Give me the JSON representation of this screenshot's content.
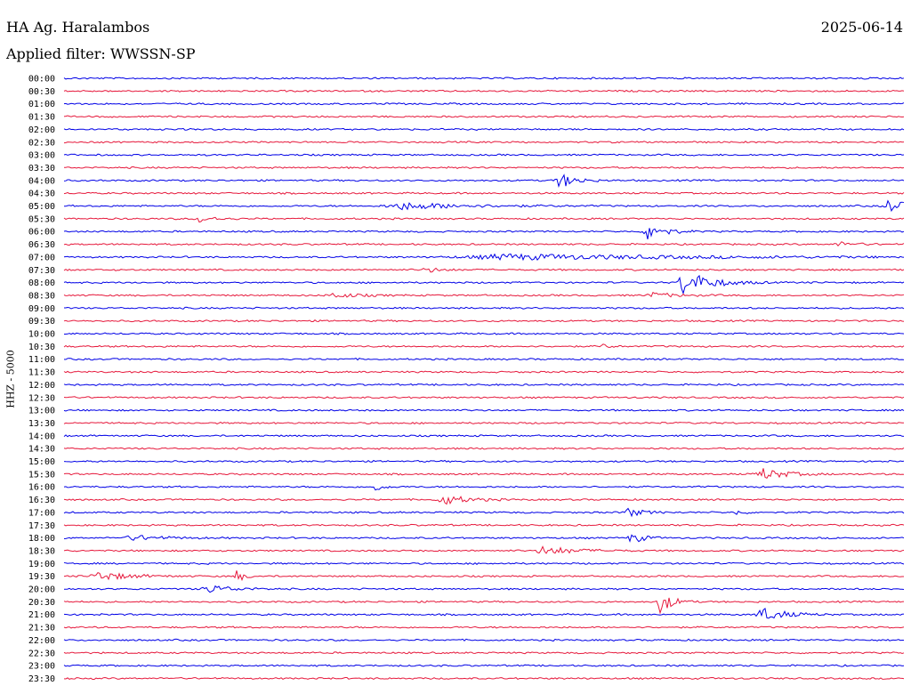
{
  "header": {
    "station": "HA Ag. Haralambos",
    "date": "2025-06-14",
    "filter": "Applied filter: WWSSN-SP"
  },
  "chart_data": {
    "type": "line",
    "title": "HA Ag. Haralambos",
    "ylabel": "HHZ - 5000",
    "categories": [
      "00:00",
      "00:30",
      "01:00",
      "01:30",
      "02:00",
      "02:30",
      "03:00",
      "03:30",
      "04:00",
      "04:30",
      "05:00",
      "05:30",
      "06:00",
      "06:30",
      "07:00",
      "07:30",
      "08:00",
      "08:30",
      "09:00",
      "09:30",
      "10:00",
      "10:30",
      "11:00",
      "11:30",
      "12:00",
      "12:30",
      "13:00",
      "13:30",
      "14:00",
      "14:30",
      "15:00",
      "15:30",
      "16:00",
      "16:30",
      "17:00",
      "17:30",
      "18:00",
      "18:30",
      "19:00",
      "19:30",
      "20:00",
      "20:30",
      "21:00",
      "21:30",
      "22:00",
      "22:30",
      "23:00",
      "23:30"
    ],
    "colors": {
      "even": "#0000e6",
      "odd": "#e6193c"
    },
    "events": [
      {
        "row": 8,
        "t": 0.59,
        "amp": 9,
        "dur": 0.02
      },
      {
        "row": 10,
        "t": 0.4,
        "amp": 4,
        "dur": 0.08
      },
      {
        "row": 10,
        "t": 0.98,
        "amp": 8,
        "dur": 0.025
      },
      {
        "row": 11,
        "t": 0.16,
        "amp": 4,
        "dur": 0.02
      },
      {
        "row": 12,
        "t": 0.695,
        "amp": 11,
        "dur": 0.02
      },
      {
        "row": 13,
        "t": 0.92,
        "amp": 3,
        "dur": 0.02
      },
      {
        "row": 14,
        "t": 0.52,
        "amp": 3,
        "dur": 0.25
      },
      {
        "row": 15,
        "t": 0.43,
        "amp": 3,
        "dur": 0.02
      },
      {
        "row": 16,
        "t": 0.737,
        "amp": 14,
        "dur": 0.035
      },
      {
        "row": 17,
        "t": 0.7,
        "amp": 3,
        "dur": 0.03
      },
      {
        "row": 17,
        "t": 0.32,
        "amp": 3,
        "dur": 0.03
      },
      {
        "row": 21,
        "t": 0.64,
        "amp": 3,
        "dur": 0.01
      },
      {
        "row": 31,
        "t": 0.83,
        "amp": 7,
        "dur": 0.03
      },
      {
        "row": 32,
        "t": 0.37,
        "amp": 5,
        "dur": 0.01
      },
      {
        "row": 33,
        "t": 0.45,
        "amp": 6,
        "dur": 0.03
      },
      {
        "row": 34,
        "t": 0.67,
        "amp": 5,
        "dur": 0.02
      },
      {
        "row": 34,
        "t": 0.8,
        "amp": 3,
        "dur": 0.01
      },
      {
        "row": 36,
        "t": 0.675,
        "amp": 7,
        "dur": 0.015
      },
      {
        "row": 36,
        "t": 0.08,
        "amp": 3,
        "dur": 0.04
      },
      {
        "row": 37,
        "t": 0.57,
        "amp": 5,
        "dur": 0.04
      },
      {
        "row": 39,
        "t": 0.04,
        "amp": 5,
        "dur": 0.04
      },
      {
        "row": 39,
        "t": 0.205,
        "amp": 7,
        "dur": 0.01
      },
      {
        "row": 40,
        "t": 0.17,
        "amp": 5,
        "dur": 0.03
      },
      {
        "row": 41,
        "t": 0.71,
        "amp": 14,
        "dur": 0.015
      },
      {
        "row": 42,
        "t": 0.83,
        "amp": 8,
        "dur": 0.03
      }
    ]
  }
}
